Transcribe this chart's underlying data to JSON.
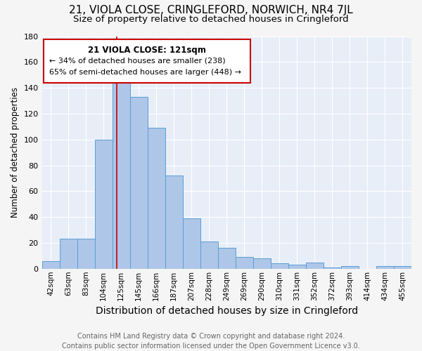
{
  "title": "21, VIOLA CLOSE, CRINGLEFORD, NORWICH, NR4 7JL",
  "subtitle": "Size of property relative to detached houses in Cringleford",
  "xlabel": "Distribution of detached houses by size in Cringleford",
  "ylabel": "Number of detached properties",
  "categories": [
    "42sqm",
    "63sqm",
    "83sqm",
    "104sqm",
    "125sqm",
    "145sqm",
    "166sqm",
    "187sqm",
    "207sqm",
    "228sqm",
    "249sqm",
    "269sqm",
    "290sqm",
    "310sqm",
    "331sqm",
    "352sqm",
    "372sqm",
    "393sqm",
    "414sqm",
    "434sqm",
    "455sqm"
  ],
  "values": [
    6,
    23,
    23,
    100,
    145,
    133,
    109,
    72,
    39,
    21,
    16,
    9,
    8,
    4,
    3,
    5,
    1,
    2,
    0,
    2,
    2
  ],
  "bar_color": "#aec6e8",
  "bar_edge_color": "#5a9fd4",
  "property_label": "21 VIOLA CLOSE: 121sqm",
  "annotation_line1": "← 34% of detached houses are smaller (238)",
  "annotation_line2": "65% of semi-detached houses are larger (448) →",
  "vline_color": "#cc0000",
  "vline_x": 3.75,
  "annotation_box_color": "#ffffff",
  "annotation_box_edge": "#cc0000",
  "footer_line1": "Contains HM Land Registry data © Crown copyright and database right 2024.",
  "footer_line2": "Contains public sector information licensed under the Open Government Licence v3.0.",
  "ylim": [
    0,
    180
  ],
  "background_color": "#e8eef8",
  "fig_background": "#f5f5f5",
  "title_fontsize": 11,
  "subtitle_fontsize": 9.5,
  "xlabel_fontsize": 10,
  "ylabel_fontsize": 8.5,
  "tick_fontsize": 7.5,
  "footer_fontsize": 7,
  "annotation_fontsize": 8.5
}
